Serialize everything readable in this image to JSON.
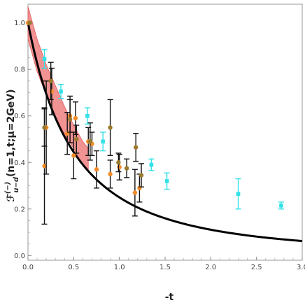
{
  "chart_data": {
    "type": "scatter",
    "xlabel": "-t",
    "ylabel": "ℱ^(−)_u−d(n=1,t;μ=2GeV)",
    "ylabel_parts": {
      "main": "ℱ",
      "superscript": "(−)",
      "subscript": "u−d",
      "args": "(n=1,t;μ=2GeV)"
    },
    "xlim": [
      0.0,
      3.0
    ],
    "ylim": [
      -0.02,
      1.08
    ],
    "x_ticks": [
      "0.0",
      "0.5",
      "1.0",
      "1.5",
      "2.0",
      "2.5",
      "3.0"
    ],
    "y_ticks": [
      "0.0",
      "0.2",
      "0.4",
      "0.6",
      "0.8",
      "1.0"
    ],
    "grid": false,
    "colors": {
      "curve": "#000000",
      "band_fill": "#f08080",
      "band_edge": "#e05a5a",
      "orange": "#f28c28",
      "olive": "#9a7a2e",
      "cyan": "#33e0e8",
      "errorbar": "#111111"
    },
    "curve": {
      "formula": "1/(1-t/1.0)^2",
      "x": [
        0,
        0.1,
        0.2,
        0.3,
        0.4,
        0.5,
        0.6,
        0.8,
        1.0,
        1.2,
        1.5,
        2.0,
        2.5,
        3.0
      ],
      "y": [
        1.0,
        0.826,
        0.694,
        0.592,
        0.51,
        0.444,
        0.391,
        0.309,
        0.25,
        0.207,
        0.16,
        0.111,
        0.082,
        0.063
      ]
    },
    "band": {
      "x": [
        0.0,
        0.1,
        0.2,
        0.3,
        0.4,
        0.5,
        0.6,
        0.66
      ],
      "upper": [
        1.07,
        0.93,
        0.82,
        0.73,
        0.64,
        0.56,
        0.49,
        0.46
      ],
      "lower": [
        0.93,
        0.79,
        0.69,
        0.6,
        0.52,
        0.46,
        0.39,
        0.36
      ]
    },
    "series": [
      {
        "marker": "circle",
        "points": [
          {
            "x": 0.0,
            "y": 1.0,
            "err": 0.0
          },
          {
            "x": 0.18,
            "y": 0.385,
            "err": 0.25
          },
          {
            "x": 0.2,
            "y": 0.55,
            "err": 0.2
          },
          {
            "x": 0.26,
            "y": 0.705,
            "err": 0.1
          },
          {
            "x": 0.43,
            "y": 0.525,
            "err": 0.09
          },
          {
            "x": 0.46,
            "y": 0.6,
            "err": 0.07
          },
          {
            "x": 0.5,
            "y": 0.43,
            "err": 0.1
          },
          {
            "x": 0.52,
            "y": 0.59,
            "err": 0.07
          },
          {
            "x": 0.66,
            "y": 0.49,
            "err": 0.06
          },
          {
            "x": 0.7,
            "y": 0.48,
            "err": 0.05
          },
          {
            "x": 0.75,
            "y": 0.37,
            "err": 0.08
          },
          {
            "x": 0.9,
            "y": 0.35,
            "err": 0.06
          },
          {
            "x": 1.0,
            "y": 0.38,
            "err": 0.055
          },
          {
            "x": 1.17,
            "y": 0.27,
            "err": 0.1
          },
          {
            "x": 1.22,
            "y": 0.29,
            "err": 0.06
          }
        ]
      },
      {
        "marker": "circle",
        "points": [
          {
            "x": 0.02,
            "y": 1.0,
            "err": 0.0
          },
          {
            "x": 0.18,
            "y": 0.55,
            "err": 0.08
          },
          {
            "x": 0.25,
            "y": 0.75,
            "err": 0.08
          },
          {
            "x": 0.46,
            "y": 0.585,
            "err": 0.1
          },
          {
            "x": 0.53,
            "y": 0.5,
            "err": 0.06
          },
          {
            "x": 0.68,
            "y": 0.49,
            "err": 0.08
          },
          {
            "x": 0.9,
            "y": 0.55,
            "err": 0.12
          },
          {
            "x": 0.99,
            "y": 0.4,
            "err": 0.04
          },
          {
            "x": 1.08,
            "y": 0.375,
            "err": 0.04
          },
          {
            "x": 1.18,
            "y": 0.465,
            "err": 0.06
          },
          {
            "x": 1.24,
            "y": 0.345,
            "err": 0.05
          }
        ]
      },
      {
        "marker": "square",
        "points": [
          {
            "x": 0.18,
            "y": 0.845,
            "err": 0.04
          },
          {
            "x": 0.36,
            "y": 0.705,
            "err": 0.03
          },
          {
            "x": 0.65,
            "y": 0.6,
            "err": 0.035
          },
          {
            "x": 0.82,
            "y": 0.49,
            "err": 0.04
          },
          {
            "x": 1.35,
            "y": 0.39,
            "err": 0.025
          },
          {
            "x": 1.52,
            "y": 0.32,
            "err": 0.035
          },
          {
            "x": 2.3,
            "y": 0.265,
            "err": 0.065
          },
          {
            "x": 2.77,
            "y": 0.215,
            "err": 0.015
          }
        ]
      }
    ]
  }
}
